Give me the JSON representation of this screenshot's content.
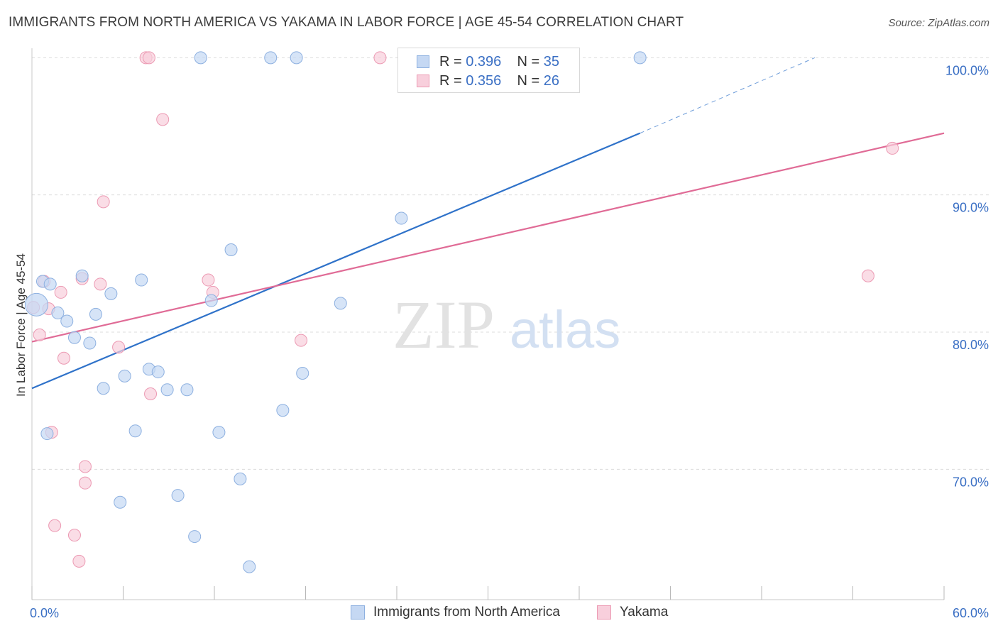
{
  "title": "IMMIGRANTS FROM NORTH AMERICA VS YAKAMA IN LABOR FORCE | AGE 45-54 CORRELATION CHART",
  "source": "Source: ZipAtlas.com",
  "watermark": {
    "zip": "ZIP",
    "atlas": "atlas"
  },
  "legend_top": [
    {
      "r_label": "R = ",
      "r_value": "0.396",
      "n_label": "N = ",
      "n_value": "35"
    },
    {
      "r_label": "R = ",
      "r_value": "0.356",
      "n_label": "N = ",
      "n_value": "26"
    }
  ],
  "legend_bottom": [
    {
      "label": "Immigrants from North America"
    },
    {
      "label": "Yakama"
    }
  ],
  "colors": {
    "blue_fill": "#c5d8f3",
    "blue_stroke": "#8db0e0",
    "blue_line": "#2f72c9",
    "pink_fill": "#f8cfdc",
    "pink_stroke": "#ec9ab3",
    "pink_line": "#e06b96",
    "grid": "#dcdcdc",
    "tick_text": "#3a6fc4"
  },
  "chart_data": {
    "type": "scatter",
    "title": "IMMIGRANTS FROM NORTH AMERICA VS YAKAMA IN LABOR FORCE | AGE 45-54 CORRELATION CHART",
    "xlabel": "",
    "ylabel": "In Labor Force | Age 45-54",
    "xlim": [
      0,
      60
    ],
    "ylim": [
      60.5,
      101
    ],
    "x_tick_labels": [
      "0.0%",
      "60.0%"
    ],
    "y_ticks": [
      70,
      80,
      90,
      100
    ],
    "y_tick_labels": [
      "70.0%",
      "80.0%",
      "90.0%",
      "100.0%"
    ],
    "grid": "horizontal dashed",
    "legend_position": "top-center and bottom",
    "series": [
      {
        "name": "Immigrants from North America",
        "r": 0.396,
        "n": 35,
        "trend": {
          "x": [
            0,
            40
          ],
          "y": [
            75.9,
            94.5
          ],
          "dashed_extension": {
            "x": [
              40,
              51.5
            ],
            "y": [
              94.5,
              100
            ]
          }
        },
        "points": [
          [
            0.3,
            82.0
          ],
          [
            0.7,
            83.7
          ],
          [
            1.2,
            83.5
          ],
          [
            1.7,
            81.4
          ],
          [
            2.3,
            80.8
          ],
          [
            2.8,
            79.6
          ],
          [
            3.3,
            84.1
          ],
          [
            3.8,
            79.2
          ],
          [
            4.2,
            81.3
          ],
          [
            4.7,
            75.9
          ],
          [
            5.2,
            82.8
          ],
          [
            5.8,
            67.6
          ],
          [
            6.1,
            76.8
          ],
          [
            6.8,
            72.8
          ],
          [
            7.2,
            83.8
          ],
          [
            7.7,
            77.3
          ],
          [
            8.3,
            77.1
          ],
          [
            8.9,
            75.8
          ],
          [
            9.6,
            68.1
          ],
          [
            10.2,
            75.8
          ],
          [
            10.7,
            65.1
          ],
          [
            11.1,
            100
          ],
          [
            11.8,
            82.3
          ],
          [
            12.3,
            72.7
          ],
          [
            13.1,
            86.0
          ],
          [
            13.7,
            69.3
          ],
          [
            14.3,
            62.9
          ],
          [
            15.7,
            100
          ],
          [
            16.5,
            74.3
          ],
          [
            17.4,
            100
          ],
          [
            17.8,
            77.0
          ],
          [
            20.3,
            82.1
          ],
          [
            24.3,
            88.3
          ],
          [
            40.0,
            100
          ],
          [
            1.0,
            72.6
          ]
        ]
      },
      {
        "name": "Yakama",
        "r": 0.356,
        "n": 26,
        "trend": {
          "x": [
            0,
            60
          ],
          "y": [
            79.3,
            94.5
          ]
        },
        "points": [
          [
            0.1,
            81.8
          ],
          [
            0.5,
            79.8
          ],
          [
            0.8,
            83.7
          ],
          [
            1.1,
            81.7
          ],
          [
            1.3,
            72.7
          ],
          [
            1.5,
            65.9
          ],
          [
            1.9,
            82.9
          ],
          [
            2.1,
            78.1
          ],
          [
            2.8,
            65.2
          ],
          [
            3.1,
            63.3
          ],
          [
            3.3,
            83.9
          ],
          [
            3.5,
            69.0
          ],
          [
            3.5,
            70.2
          ],
          [
            4.5,
            83.5
          ],
          [
            4.7,
            89.5
          ],
          [
            5.7,
            78.9
          ],
          [
            7.5,
            100
          ],
          [
            7.7,
            100
          ],
          [
            7.8,
            75.5
          ],
          [
            8.6,
            95.5
          ],
          [
            11.6,
            83.8
          ],
          [
            11.9,
            82.9
          ],
          [
            17.7,
            79.4
          ],
          [
            22.9,
            100
          ],
          [
            55.0,
            84.1
          ],
          [
            56.6,
            93.4
          ]
        ]
      }
    ]
  }
}
